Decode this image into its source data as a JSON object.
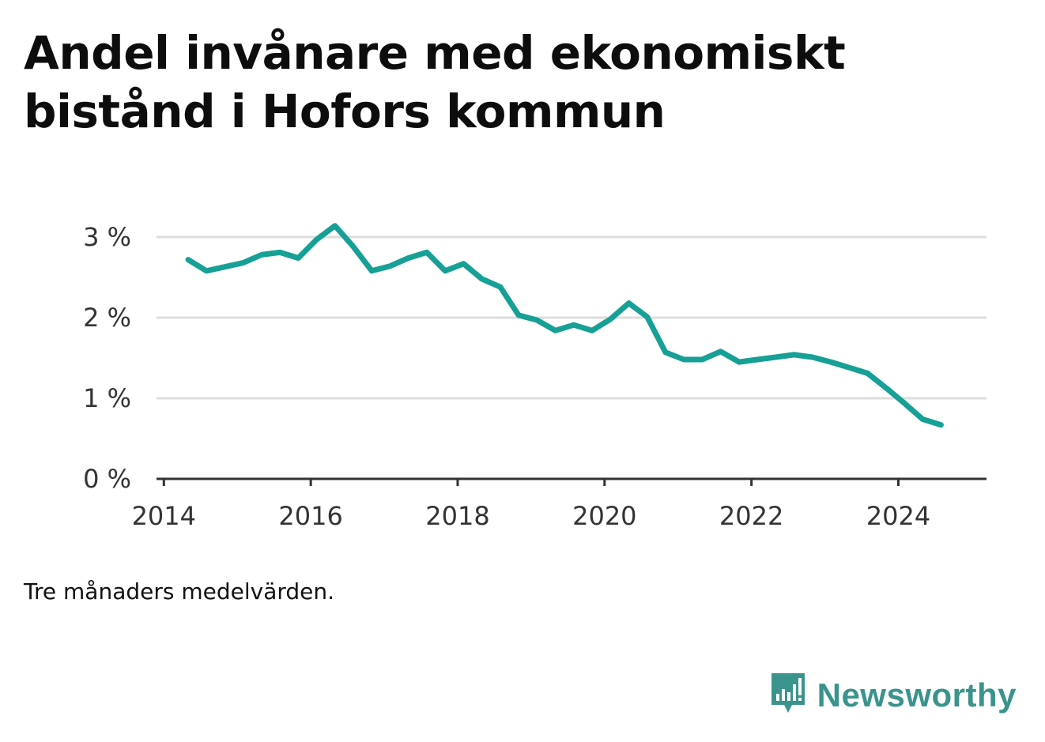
{
  "title": "Andel invånare med ekonomiskt bistånd i Hofors kommun",
  "caption": "Tre månaders medelvärden.",
  "brand": {
    "name": "Newsworthy",
    "icon": "newsworthy-logo-icon",
    "color": "#3a948c"
  },
  "chart_data": {
    "type": "line",
    "title": "Andel invånare med ekonomiskt bistånd i Hofors kommun",
    "xlabel": "",
    "ylabel": "",
    "xlim": [
      2013.9,
      2025.2
    ],
    "ylim": [
      0,
      3
    ],
    "grid": true,
    "legend": "none",
    "line_color": "#16a096",
    "x_ticks": [
      2014,
      2016,
      2018,
      2020,
      2022,
      2024
    ],
    "x_tick_labels": [
      "2014",
      "2016",
      "2018",
      "2020",
      "2022",
      "2024"
    ],
    "y_ticks": [
      0,
      1,
      2,
      3
    ],
    "y_tick_labels": [
      "0 %",
      "1 %",
      "2 %",
      "3 %"
    ],
    "series": [
      {
        "x": [
          2014.33,
          2014.58,
          2014.83,
          2015.08,
          2015.33,
          2015.58,
          2015.83,
          2016.08,
          2016.33,
          2016.58,
          2016.83,
          2017.08,
          2017.33,
          2017.58,
          2017.83,
          2018.08,
          2018.33,
          2018.58,
          2018.83,
          2019.08,
          2019.33,
          2019.58,
          2019.83,
          2020.08,
          2020.33,
          2020.58,
          2020.83,
          2021.08,
          2021.33,
          2021.58,
          2021.83,
          2022.08,
          2022.33,
          2022.58,
          2022.83,
          2023.08,
          2023.33,
          2023.58,
          2023.83,
          2024.08,
          2024.33,
          2024.58
        ],
        "y": [
          2.72,
          2.58,
          2.63,
          2.68,
          2.78,
          2.81,
          2.74,
          2.97,
          3.14,
          2.88,
          2.58,
          2.64,
          2.74,
          2.81,
          2.58,
          2.67,
          2.48,
          2.38,
          2.03,
          1.97,
          1.84,
          1.91,
          1.84,
          1.98,
          2.18,
          2.01,
          1.57,
          1.48,
          1.48,
          1.58,
          1.45,
          1.48,
          1.51,
          1.54,
          1.51,
          1.45,
          1.38,
          1.31,
          1.13,
          0.94,
          0.74,
          0.67
        ]
      }
    ]
  }
}
